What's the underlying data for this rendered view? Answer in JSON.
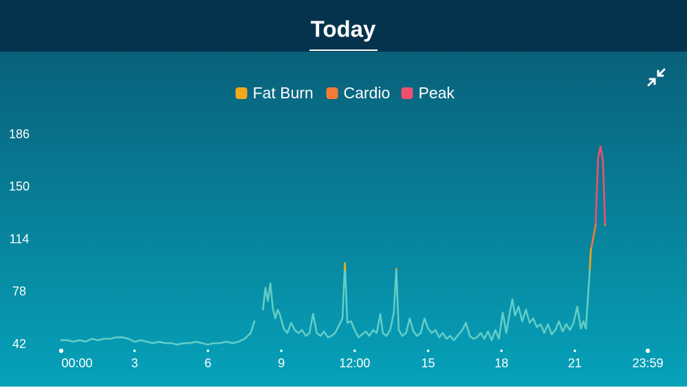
{
  "chart_data": {
    "type": "line",
    "title": "Today",
    "x": [
      0,
      0.25,
      0.5,
      0.75,
      1,
      1.25,
      1.5,
      1.75,
      2,
      2.25,
      2.5,
      2.75,
      3,
      3.25,
      3.5,
      3.75,
      4,
      4.25,
      4.5,
      4.75,
      5,
      5.25,
      5.5,
      5.75,
      6,
      6.25,
      6.5,
      6.75,
      7,
      7.25,
      7.5,
      7.75,
      7.9,
      8.1,
      8.25,
      8.35,
      8.45,
      8.55,
      8.65,
      8.75,
      8.85,
      8.95,
      9.1,
      9.25,
      9.4,
      9.55,
      9.7,
      9.85,
      10,
      10.15,
      10.3,
      10.45,
      10.6,
      10.75,
      10.9,
      11.05,
      11.2,
      11.35,
      11.5,
      11.6,
      11.7,
      11.85,
      12,
      12.15,
      12.3,
      12.45,
      12.6,
      12.75,
      12.9,
      13.05,
      13.15,
      13.3,
      13.45,
      13.6,
      13.7,
      13.8,
      13.95,
      14.1,
      14.25,
      14.4,
      14.55,
      14.7,
      14.85,
      15,
      15.15,
      15.3,
      15.45,
      15.6,
      15.75,
      15.9,
      16.05,
      16.2,
      16.4,
      16.55,
      16.7,
      16.85,
      17,
      17.15,
      17.3,
      17.45,
      17.6,
      17.75,
      17.9,
      18.05,
      18.2,
      18.35,
      18.45,
      18.55,
      18.7,
      18.85,
      19,
      19.15,
      19.3,
      19.45,
      19.6,
      19.75,
      19.9,
      20.05,
      20.2,
      20.35,
      20.5,
      20.65,
      20.8,
      20.95,
      21.1,
      21.25,
      21.35,
      21.45,
      21.6,
      21.65,
      21.85,
      21.95,
      22.05,
      22.15,
      22.24
    ],
    "values": [
      45,
      45,
      44,
      45,
      44,
      46,
      45,
      46,
      46,
      47,
      47,
      46,
      44,
      45,
      44,
      43,
      44,
      43,
      43,
      42,
      43,
      43,
      44,
      43,
      42,
      43,
      43,
      44,
      43,
      44,
      46,
      50,
      58,
      null,
      66,
      81,
      72,
      84,
      67,
      60,
      66,
      62,
      53,
      50,
      57,
      52,
      50,
      52,
      48,
      50,
      63,
      50,
      48,
      51,
      47,
      48,
      50,
      55,
      60,
      98,
      57,
      58,
      52,
      47,
      49,
      51,
      48,
      52,
      50,
      63,
      50,
      48,
      52,
      64,
      94,
      52,
      48,
      50,
      60,
      51,
      48,
      50,
      60,
      53,
      50,
      52,
      47,
      50,
      46,
      48,
      45,
      48,
      52,
      57,
      48,
      46,
      47,
      50,
      46,
      51,
      45,
      52,
      46,
      64,
      50,
      65,
      73,
      62,
      68,
      58,
      66,
      57,
      60,
      54,
      56,
      50,
      56,
      49,
      52,
      58,
      51,
      56,
      52,
      57,
      68,
      53,
      58,
      53,
      90,
      106,
      124,
      170,
      178,
      168,
      124
    ],
    "color": "#62cdc6",
    "zones": [
      {
        "name": "Fat Burn",
        "color": "#f2a81d",
        "from": 93
      },
      {
        "name": "Cardio",
        "color": "#f47b34",
        "from": 108
      },
      {
        "name": "Peak",
        "color": "#f0506e",
        "from": 125
      }
    ],
    "xlim": [
      0,
      23.983
    ],
    "xticks": [
      {
        "value": 0,
        "label": "00:00"
      },
      3,
      6,
      9,
      {
        "value": 12,
        "label": "12:00"
      },
      15,
      18,
      21,
      {
        "value": 23.983,
        "label": "23:59"
      }
    ],
    "ylim": [
      42,
      186
    ],
    "yticks": [
      42,
      78,
      114,
      150,
      186
    ]
  }
}
